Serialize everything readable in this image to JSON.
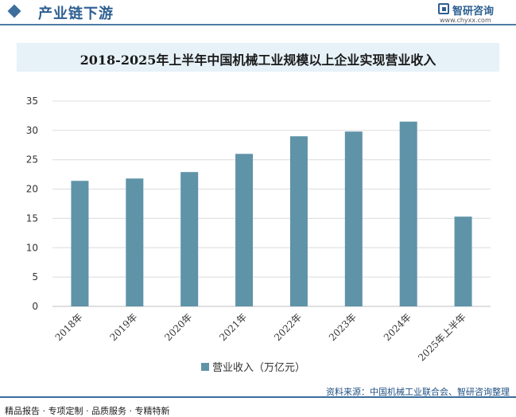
{
  "header": {
    "section_title": "产业链下游",
    "logo_name": "智研咨询",
    "logo_url": "www.chyxx.com"
  },
  "chart_data": {
    "type": "bar",
    "title": "2018-2025年上半年中国机械工业规模以上企业实现营业收入",
    "categories": [
      "2018年",
      "2019年",
      "2020年",
      "2021年",
      "2022年",
      "2023年",
      "2024年",
      "2025年上半年"
    ],
    "series": [
      {
        "name": "营业收入（万亿元）",
        "values": [
          21.4,
          21.8,
          22.9,
          26.0,
          29.0,
          29.8,
          31.5,
          15.3
        ]
      }
    ],
    "ylim": [
      0,
      35
    ],
    "yticks": [
      "0",
      "5",
      "10",
      "15",
      "20",
      "25",
      "30",
      "35"
    ],
    "grid": true,
    "legend": "bottom",
    "bar_color": "#5f93a8"
  },
  "footer": {
    "left": "精品报告 · 专项定制 · 品质服务 · 专精特新",
    "source": "资料来源：中国机械工业联合会、智研咨询整理"
  }
}
